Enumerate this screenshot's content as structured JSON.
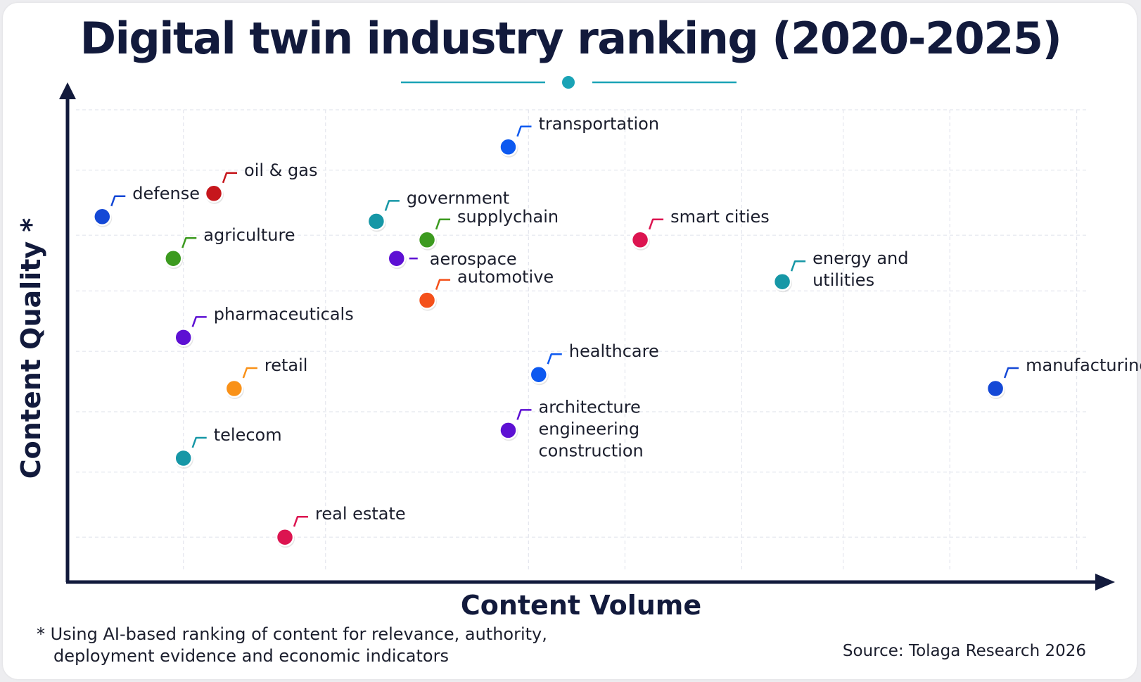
{
  "colors": {
    "axis": "#121a3c",
    "grid": "#e4e6ee",
    "title_ornament": "#1aa3b6"
  },
  "chart_data": {
    "type": "scatter",
    "title": "Digital twin industry ranking (2020-2025)",
    "xlabel": "Content Volume",
    "ylabel": "Content Quality *",
    "xlim": [
      0,
      100
    ],
    "ylim": [
      0,
      100
    ],
    "grid": true,
    "tick_labels": false,
    "points": [
      {
        "label": "transportation",
        "lines": [
          "transportation"
        ],
        "x": 43,
        "y": 92,
        "color": "#0d59f0"
      },
      {
        "label": "oil & gas",
        "lines": [
          "oil & gas"
        ],
        "x": 14,
        "y": 82,
        "color": "#c6161c"
      },
      {
        "label": "defense",
        "lines": [
          "defense"
        ],
        "x": 3,
        "y": 77,
        "color": "#1448d6"
      },
      {
        "label": "government",
        "lines": [
          "government"
        ],
        "x": 30,
        "y": 76,
        "color": "#1697a6"
      },
      {
        "label": "supplychain",
        "lines": [
          "supplychain"
        ],
        "x": 35,
        "y": 72,
        "color": "#3c9a1f"
      },
      {
        "label": "smart cities",
        "lines": [
          "smart cities"
        ],
        "x": 56,
        "y": 72,
        "color": "#dc1450"
      },
      {
        "label": "agriculture",
        "lines": [
          "agriculture"
        ],
        "x": 10,
        "y": 68,
        "color": "#3c9a1f"
      },
      {
        "label": "aerospace",
        "lines": [
          "aerospace"
        ],
        "x": 32,
        "y": 68,
        "color": "#5d10d3"
      },
      {
        "label": "energy and utilities",
        "lines": [
          "energy and",
          "utilities"
        ],
        "x": 70,
        "y": 63,
        "color": "#1697a6"
      },
      {
        "label": "automotive",
        "lines": [
          "automotive"
        ],
        "x": 35,
        "y": 59,
        "color": "#f4501a"
      },
      {
        "label": "pharmaceuticals",
        "lines": [
          "pharmaceuticals"
        ],
        "x": 11,
        "y": 51,
        "color": "#5d10d3"
      },
      {
        "label": "healthcare",
        "lines": [
          "healthcare"
        ],
        "x": 46,
        "y": 43,
        "color": "#0d59f0"
      },
      {
        "label": "retail",
        "lines": [
          "retail"
        ],
        "x": 16,
        "y": 40,
        "color": "#f99118"
      },
      {
        "label": "manufacturing",
        "lines": [
          "manufacturing"
        ],
        "x": 91,
        "y": 40,
        "color": "#1448d6"
      },
      {
        "label": "architecture engineering construction",
        "lines": [
          "architecture",
          "engineering",
          "construction"
        ],
        "x": 43,
        "y": 31,
        "color": "#5d10d3"
      },
      {
        "label": "telecom",
        "lines": [
          "telecom"
        ],
        "x": 11,
        "y": 25,
        "color": "#1697a6"
      },
      {
        "label": "real estate",
        "lines": [
          "real estate"
        ],
        "x": 21,
        "y": 8,
        "color": "#dc1450"
      }
    ]
  },
  "footnote": {
    "line1": "* Using AI-based ranking of content for relevance, authority,",
    "line2": "deployment evidence and economic indicators"
  },
  "source": "Source: Tolaga Research 2026"
}
